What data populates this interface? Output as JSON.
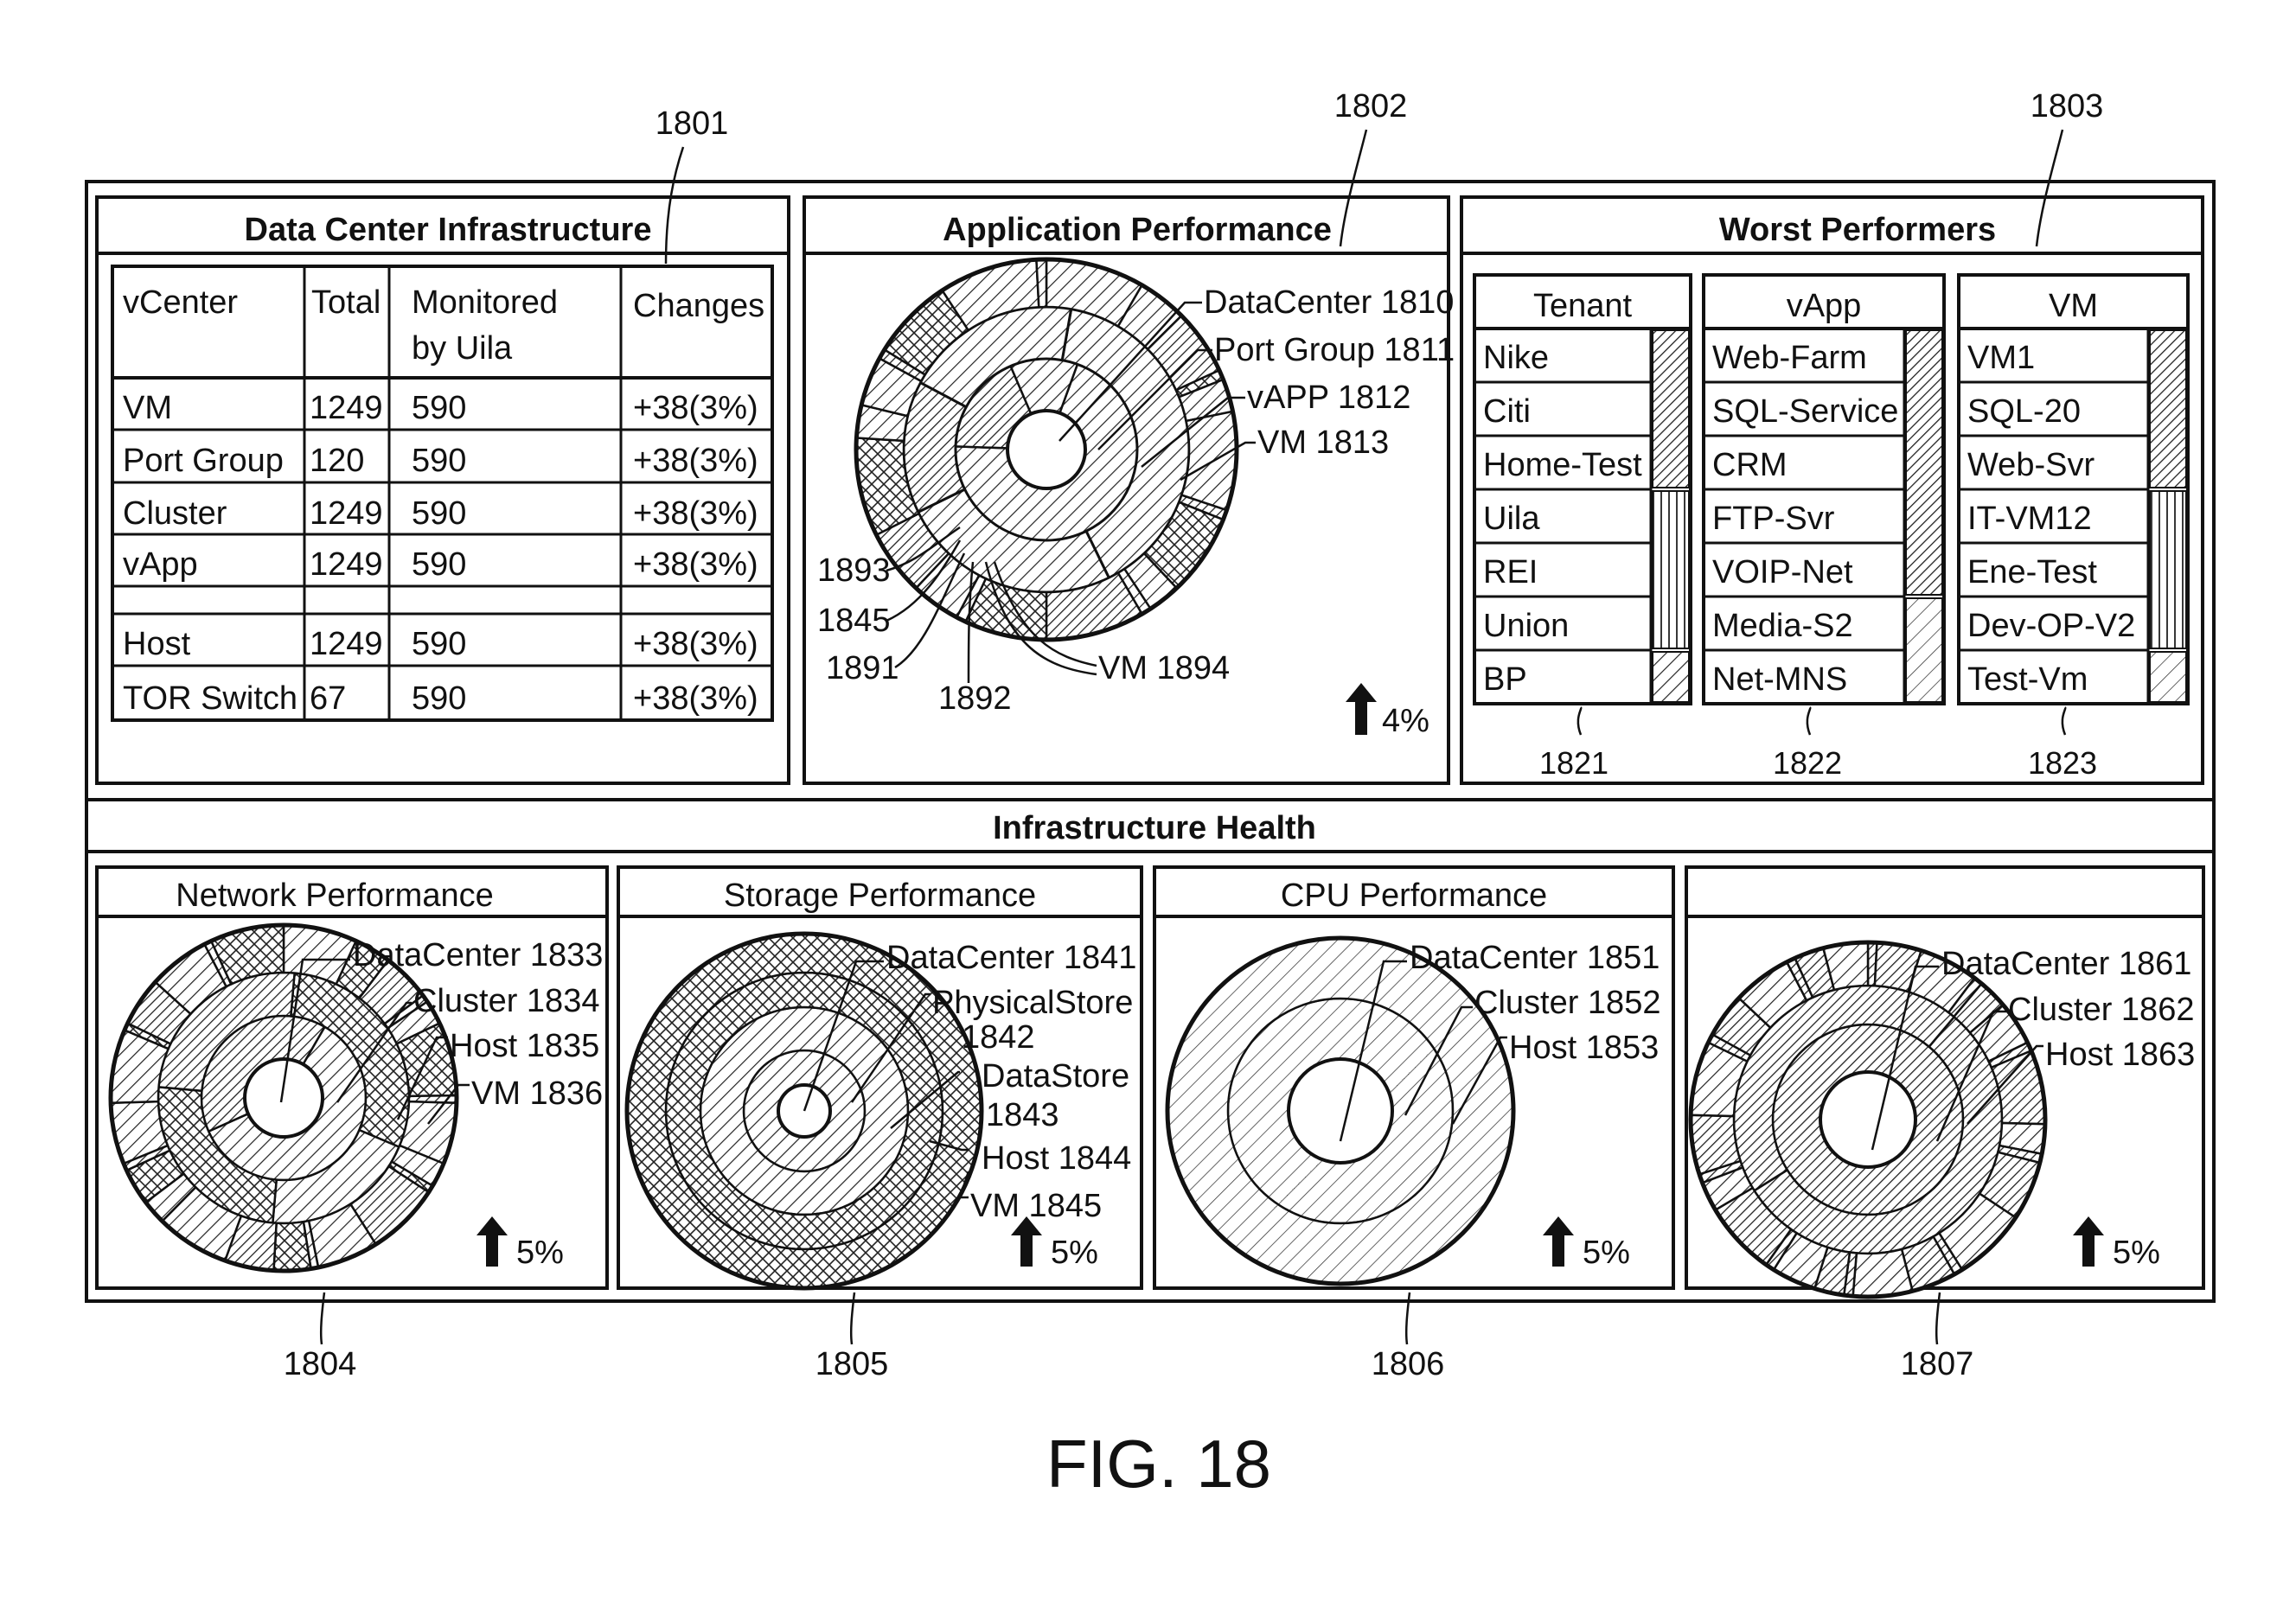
{
  "figure_label": "FIG. 18",
  "refs": {
    "r1801": "1801",
    "r1802": "1802",
    "r1803": "1803",
    "r1804": "1804",
    "r1805": "1805",
    "r1806": "1806",
    "r1807": "1807",
    "r1821": "1821",
    "r1822": "1822",
    "r1823": "1823"
  },
  "dci": {
    "title": "Data Center Infrastructure",
    "headers": {
      "c1": "vCenter",
      "c2": "Total",
      "c3a": "Monitored",
      "c3b": "by Uila",
      "c4": "Changes"
    },
    "rows": [
      {
        "name": "VM",
        "total": "1249",
        "monitored": "590",
        "changes": "+38(3%)"
      },
      {
        "name": "Port Group",
        "total": "120",
        "monitored": "590",
        "changes": "+38(3%)"
      },
      {
        "name": "Cluster",
        "total": "1249",
        "monitored": "590",
        "changes": "+38(3%)"
      },
      {
        "name": "vApp",
        "total": "1249",
        "monitored": "590",
        "changes": "+38(3%)"
      },
      {
        "name": "Host",
        "total": "1249",
        "monitored": "590",
        "changes": "+38(3%)"
      },
      {
        "name": "TOR Switch",
        "total": "67",
        "monitored": "590",
        "changes": "+38(3%)"
      }
    ]
  },
  "app": {
    "title": "Application Performance",
    "labels": {
      "l1": "DataCenter 1810",
      "l2": "Port Group 1811",
      "l3": "vAPP 1812",
      "l4": "VM 1813",
      "l5": "1893",
      "l6": "1845",
      "l7": "1891",
      "l8": "1892",
      "l9": "VM 1894"
    },
    "trend": "4%",
    "up_icon": "arrow-up-icon"
  },
  "worst": {
    "title": "Worst Performers",
    "columns": [
      {
        "header": "Tenant",
        "items": [
          "Nike",
          "Citi",
          "Home-Test",
          "Uila",
          "REI",
          "Union",
          "BP"
        ]
      },
      {
        "header": "vApp",
        "items": [
          "Web-Farm",
          "SQL-Service",
          "CRM",
          "FTP-Svr",
          "VOIP-Net",
          "Media-S2",
          "Net-MNS"
        ]
      },
      {
        "header": "VM",
        "items": [
          "VM1",
          "SQL-20",
          "Web-Svr",
          "IT-VM12",
          "Ene-Test",
          "Dev-OP-V2",
          "Test-Vm"
        ]
      }
    ]
  },
  "health": {
    "title": "Infrastructure Health",
    "panels": [
      {
        "title": "Network Performance",
        "labels": [
          "DataCenter 1833",
          "Cluster 1834",
          "Host 1835",
          "VM 1836"
        ],
        "trend": "5%"
      },
      {
        "title": "Storage Performance",
        "labels": [
          "DataCenter 1841",
          "PhysicalStore",
          "1842",
          "DataStore",
          "1843",
          "Host 1844",
          "VM 1845"
        ],
        "trend": "5%"
      },
      {
        "title": "CPU Performance",
        "labels": [
          "DataCenter 1851",
          "Cluster 1852",
          "Host 1853"
        ],
        "trend": "5%"
      },
      {
        "title": "",
        "labels": [
          "DataCenter 1861",
          "Cluster 1862",
          "Host 1863"
        ],
        "trend": "5%"
      }
    ]
  }
}
